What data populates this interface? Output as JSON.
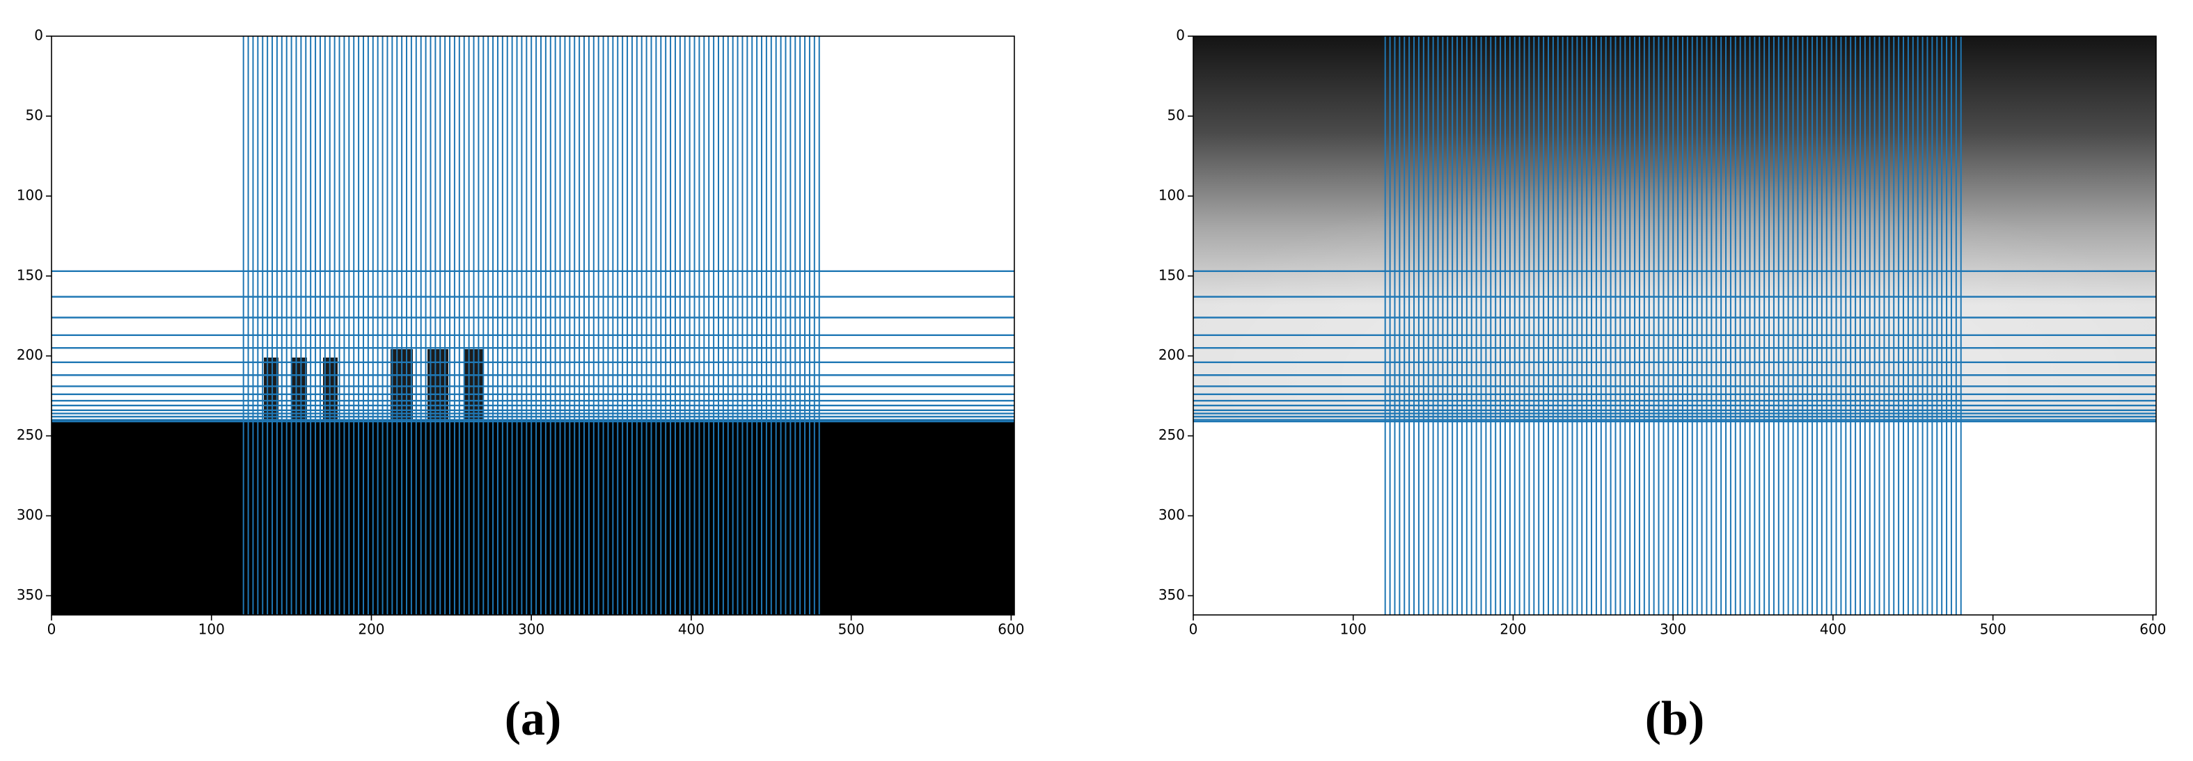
{
  "chart_data": [
    {
      "type": "image",
      "caption": "(a)",
      "color": "#1f77b4",
      "xlim": [
        0,
        602
      ],
      "ylim": [
        362,
        0
      ],
      "xticks": [
        0,
        100,
        200,
        300,
        400,
        500,
        600
      ],
      "yticks": [
        0,
        50,
        100,
        150,
        200,
        250,
        300,
        350
      ],
      "vlines": [
        120,
        123,
        126,
        129,
        132,
        135,
        138,
        141,
        144,
        147,
        150,
        153,
        156,
        159,
        162,
        165,
        168,
        171,
        174,
        177,
        180,
        183,
        186,
        189,
        192,
        195,
        198,
        201,
        204,
        207,
        210,
        213,
        216,
        219,
        222,
        225,
        228,
        231,
        234,
        237,
        240,
        243,
        246,
        249,
        252,
        255,
        258,
        261,
        264,
        267,
        270,
        273,
        276,
        279,
        282,
        285,
        288,
        291,
        294,
        297,
        300,
        303,
        306,
        309,
        312,
        315,
        318,
        321,
        324,
        327,
        330,
        333,
        336,
        339,
        342,
        345,
        348,
        351,
        354,
        357,
        360,
        363,
        366,
        369,
        372,
        375,
        378,
        381,
        384,
        387,
        390,
        393,
        396,
        399,
        402,
        405,
        408,
        411,
        414,
        417,
        420,
        423,
        426,
        429,
        432,
        435,
        438,
        441,
        444,
        447,
        450,
        453,
        456,
        459,
        462,
        465,
        468,
        471,
        474,
        477,
        480
      ],
      "hlines": [
        147,
        163,
        176,
        187,
        195,
        204,
        212,
        219,
        224,
        228,
        231,
        234,
        236,
        238,
        240,
        241
      ]
    },
    {
      "type": "image",
      "caption": "(b)",
      "color": "#1f77b4",
      "xlim": [
        0,
        602
      ],
      "ylim": [
        362,
        0
      ],
      "xticks": [
        0,
        100,
        200,
        300,
        400,
        500,
        600
      ],
      "yticks": [
        0,
        50,
        100,
        150,
        200,
        250,
        300,
        350
      ],
      "vlines": [
        120,
        123,
        126,
        129,
        132,
        135,
        138,
        141,
        144,
        147,
        150,
        153,
        156,
        159,
        162,
        165,
        168,
        171,
        174,
        177,
        180,
        183,
        186,
        189,
        192,
        195,
        198,
        201,
        204,
        207,
        210,
        213,
        216,
        219,
        222,
        225,
        228,
        231,
        234,
        237,
        240,
        243,
        246,
        249,
        252,
        255,
        258,
        261,
        264,
        267,
        270,
        273,
        276,
        279,
        282,
        285,
        288,
        291,
        294,
        297,
        300,
        303,
        306,
        309,
        312,
        315,
        318,
        321,
        324,
        327,
        330,
        333,
        336,
        339,
        342,
        345,
        348,
        351,
        354,
        357,
        360,
        363,
        366,
        369,
        372,
        375,
        378,
        381,
        384,
        387,
        390,
        393,
        396,
        399,
        402,
        405,
        408,
        411,
        414,
        417,
        420,
        423,
        426,
        429,
        432,
        435,
        438,
        441,
        444,
        447,
        450,
        453,
        456,
        459,
        462,
        465,
        468,
        471,
        474,
        477,
        480
      ],
      "hlines": [
        147,
        163,
        176,
        187,
        195,
        204,
        212,
        219,
        224,
        228,
        231,
        234,
        236,
        238,
        240,
        241
      ]
    }
  ]
}
